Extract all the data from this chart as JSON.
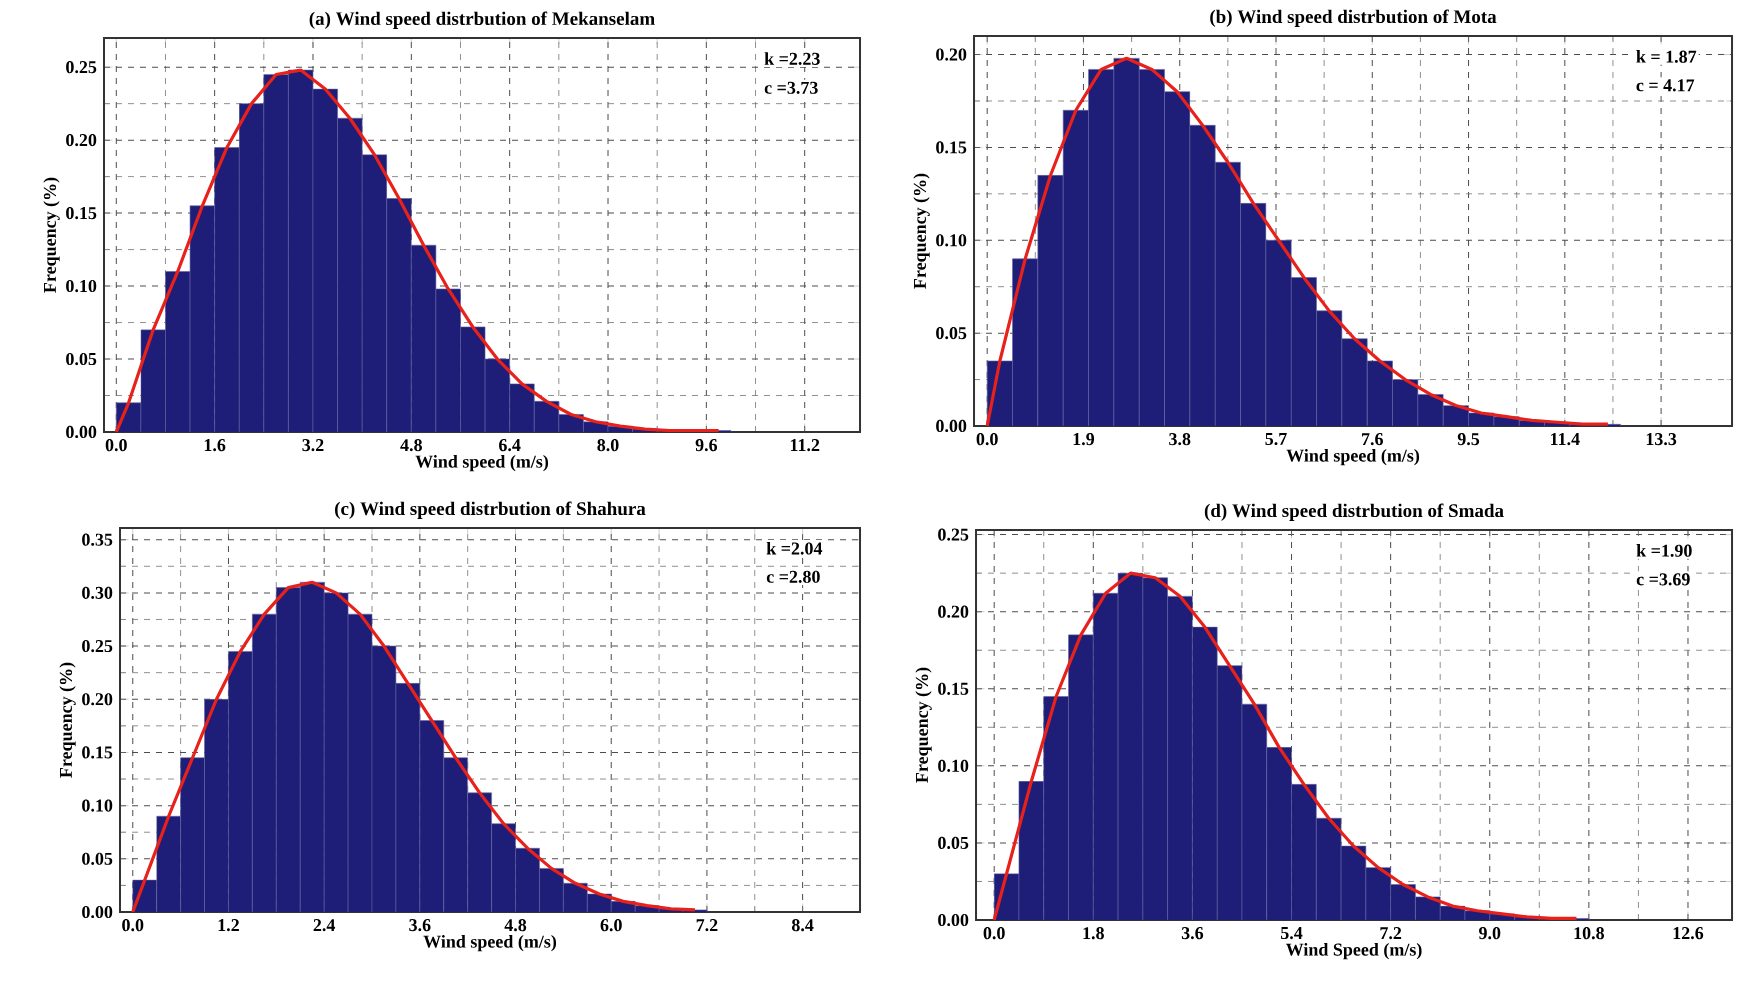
{
  "chart_data": [
    {
      "type": "histogram",
      "title": "(a) Wind speed distrbution of Mekanselam",
      "xlabel": "Wind speed (m/s)",
      "ylabel": "Frequency (%)",
      "annotations": [
        "k =2.23",
        "c =3.73"
      ],
      "grid": true,
      "xlim": [
        -0.2,
        12.1
      ],
      "ylim": [
        0,
        0.27
      ],
      "xticks": [
        {
          "value": 0,
          "label": "0.0"
        },
        {
          "value": 1.6,
          "label": "1.6"
        },
        {
          "value": 3.2,
          "label": "3.2"
        },
        {
          "value": 4.8,
          "label": "4.8"
        },
        {
          "value": 6.4,
          "label": "6.4"
        },
        {
          "value": 8,
          "label": "8.0"
        },
        {
          "value": 9.6,
          "label": "9.6"
        },
        {
          "value": 11.2,
          "label": "11.2"
        }
      ],
      "yticks": [
        {
          "value": 0,
          "label": "0.00"
        },
        {
          "value": 0.05,
          "label": "0.05"
        },
        {
          "value": 0.1,
          "label": "0.10"
        },
        {
          "value": 0.15,
          "label": "0.15"
        },
        {
          "value": 0.2,
          "label": "0.20"
        },
        {
          "value": 0.25,
          "label": "0.25"
        }
      ],
      "bins": [
        0,
        0.4,
        0.8,
        1.2,
        1.6,
        2,
        2.4,
        2.8,
        3.2,
        3.6,
        4,
        4.4,
        4.8,
        5.2,
        5.6,
        6,
        6.4,
        6.8,
        7.2,
        7.6,
        8,
        8.4,
        8.8,
        9.2,
        9.6,
        10
      ],
      "series": [
        {
          "color": "#1e1e78",
          "values": [
            0.02,
            0.07,
            0.11,
            0.155,
            0.195,
            0.225,
            0.245,
            0.248,
            0.235,
            0.215,
            0.19,
            0.16,
            0.128,
            0.098,
            0.072,
            0.05,
            0.033,
            0.021,
            0.012,
            0.007,
            0.004,
            0.002,
            0.001,
            0.001,
            0.001
          ]
        },
        {
          "type": "line",
          "color": "#e8211b",
          "x": [
            0,
            0.2,
            0.6,
            1,
            1.4,
            1.8,
            2.2,
            2.6,
            3,
            3.4,
            3.8,
            4.2,
            4.6,
            5,
            5.4,
            5.8,
            6.2,
            6.6,
            7,
            7.4,
            7.8,
            8.2,
            8.6,
            9,
            9.4,
            9.8
          ],
          "values": [
            0,
            0.02,
            0.07,
            0.11,
            0.155,
            0.195,
            0.225,
            0.245,
            0.248,
            0.235,
            0.215,
            0.19,
            0.16,
            0.128,
            0.098,
            0.072,
            0.05,
            0.033,
            0.021,
            0.012,
            0.007,
            0.004,
            0.002,
            0.001,
            0.001,
            0.001
          ]
        }
      ]
    },
    {
      "type": "histogram",
      "title": "(b) Wind speed distrbution of Mota",
      "xlabel": "Wind speed (m/s)",
      "ylabel": "Frequency (%)",
      "annotations": [
        "k  =  1.87",
        "c =   4.17"
      ],
      "grid": true,
      "xlim": [
        -0.26,
        14.7
      ],
      "ylim": [
        0,
        0.21
      ],
      "xticks": [
        {
          "value": 0,
          "label": "0.0"
        },
        {
          "value": 1.9,
          "label": "1.9"
        },
        {
          "value": 3.8,
          "label": "3.8"
        },
        {
          "value": 5.7,
          "label": "5.7"
        },
        {
          "value": 7.6,
          "label": "7.6"
        },
        {
          "value": 9.5,
          "label": "9.5"
        },
        {
          "value": 11.4,
          "label": "11.4"
        },
        {
          "value": 13.3,
          "label": "13.3"
        }
      ],
      "yticks": [
        {
          "value": 0,
          "label": "0.00"
        },
        {
          "value": 0.05,
          "label": "0.05"
        },
        {
          "value": 0.1,
          "label": "0.10"
        },
        {
          "value": 0.15,
          "label": "0.15"
        },
        {
          "value": 0.2,
          "label": "0.20"
        }
      ],
      "bins": [
        0,
        0.5,
        1,
        1.5,
        2,
        2.5,
        3,
        3.5,
        4,
        4.5,
        5,
        5.5,
        6,
        6.5,
        7,
        7.5,
        8,
        8.5,
        9,
        9.5,
        10,
        10.5,
        11,
        11.5,
        12,
        12.5
      ],
      "series": [
        {
          "color": "#1e1e78",
          "values": [
            0.035,
            0.09,
            0.135,
            0.17,
            0.192,
            0.198,
            0.192,
            0.18,
            0.162,
            0.142,
            0.12,
            0.1,
            0.08,
            0.062,
            0.047,
            0.035,
            0.025,
            0.017,
            0.011,
            0.007,
            0.005,
            0.003,
            0.002,
            0.001,
            0.001
          ]
        },
        {
          "type": "line",
          "color": "#e8211b",
          "x": [
            0,
            0.25,
            0.75,
            1.25,
            1.75,
            2.25,
            2.75,
            3.25,
            3.75,
            4.25,
            4.75,
            5.25,
            5.75,
            6.25,
            6.75,
            7.25,
            7.75,
            8.25,
            8.75,
            9.25,
            9.75,
            10.25,
            10.75,
            11.25,
            11.75,
            12.25
          ],
          "values": [
            0,
            0.035,
            0.09,
            0.135,
            0.17,
            0.192,
            0.198,
            0.192,
            0.18,
            0.162,
            0.142,
            0.12,
            0.1,
            0.08,
            0.062,
            0.047,
            0.035,
            0.025,
            0.017,
            0.011,
            0.007,
            0.005,
            0.003,
            0.002,
            0.001,
            0.001
          ]
        }
      ]
    },
    {
      "type": "histogram",
      "title": "(c) Wind speed distrbution of Shahura",
      "xlabel": "Wind speed (m/s)",
      "ylabel": "Frequency (%)",
      "annotations": [
        "k =2.04",
        "c =2.80"
      ],
      "grid": true,
      "xlim": [
        -0.16,
        9.12
      ],
      "ylim": [
        0,
        0.361
      ],
      "xticks": [
        {
          "value": 0,
          "label": "0.0"
        },
        {
          "value": 1.2,
          "label": "1.2"
        },
        {
          "value": 2.4,
          "label": "2.4"
        },
        {
          "value": 3.6,
          "label": "3.6"
        },
        {
          "value": 4.8,
          "label": "4.8"
        },
        {
          "value": 6,
          "label": "6.0"
        },
        {
          "value": 7.2,
          "label": "7.2"
        },
        {
          "value": 8.4,
          "label": "8.4"
        }
      ],
      "yticks": [
        {
          "value": 0,
          "label": "0.00"
        },
        {
          "value": 0.05,
          "label": "0.05"
        },
        {
          "value": 0.1,
          "label": "0.10"
        },
        {
          "value": 0.15,
          "label": "0.15"
        },
        {
          "value": 0.2,
          "label": "0.20"
        },
        {
          "value": 0.25,
          "label": "0.25"
        },
        {
          "value": 0.3,
          "label": "0.30"
        },
        {
          "value": 0.35,
          "label": "0.35"
        }
      ],
      "bins": [
        0,
        0.3,
        0.6,
        0.9,
        1.2,
        1.5,
        1.8,
        2.1,
        2.4,
        2.7,
        3,
        3.3,
        3.6,
        3.9,
        4.2,
        4.5,
        4.8,
        5.1,
        5.4,
        5.7,
        6,
        6.3,
        6.6,
        6.9,
        7.2
      ],
      "series": [
        {
          "color": "#1e1e78",
          "values": [
            0.03,
            0.09,
            0.145,
            0.2,
            0.245,
            0.28,
            0.305,
            0.31,
            0.3,
            0.28,
            0.25,
            0.215,
            0.18,
            0.145,
            0.112,
            0.083,
            0.06,
            0.041,
            0.027,
            0.017,
            0.01,
            0.006,
            0.003,
            0.002
          ]
        },
        {
          "type": "line",
          "color": "#e8211b",
          "x": [
            0,
            0.15,
            0.45,
            0.75,
            1.05,
            1.35,
            1.65,
            1.95,
            2.25,
            2.55,
            2.85,
            3.15,
            3.45,
            3.75,
            4.05,
            4.35,
            4.65,
            4.95,
            5.25,
            5.55,
            5.85,
            6.15,
            6.45,
            6.75,
            7.05
          ],
          "values": [
            0,
            0.03,
            0.09,
            0.145,
            0.2,
            0.245,
            0.28,
            0.305,
            0.31,
            0.3,
            0.28,
            0.25,
            0.215,
            0.18,
            0.145,
            0.112,
            0.083,
            0.06,
            0.041,
            0.027,
            0.017,
            0.01,
            0.006,
            0.003,
            0.002
          ]
        }
      ]
    },
    {
      "type": "histogram",
      "title": "(d) Wind speed distrbution of Smada",
      "xlabel": "Wind Speed (m/s)",
      "ylabel": "Frequency (%)",
      "annotations": [
        "k =1.90",
        "c =3.69"
      ],
      "grid": true,
      "xlim": [
        -0.33,
        13.4
      ],
      "ylim": [
        0,
        0.253
      ],
      "xticks": [
        {
          "value": 0,
          "label": "0.0"
        },
        {
          "value": 1.8,
          "label": "1.8"
        },
        {
          "value": 3.6,
          "label": "3.6"
        },
        {
          "value": 5.4,
          "label": "5.4"
        },
        {
          "value": 7.2,
          "label": "7.2"
        },
        {
          "value": 9,
          "label": "9.0"
        },
        {
          "value": 10.8,
          "label": "10.8"
        },
        {
          "value": 12.6,
          "label": "12.6"
        }
      ],
      "yticks": [
        {
          "value": 0,
          "label": "0.00"
        },
        {
          "value": 0.05,
          "label": "0.05"
        },
        {
          "value": 0.1,
          "label": "0.10"
        },
        {
          "value": 0.15,
          "label": "0.15"
        },
        {
          "value": 0.2,
          "label": "0.20"
        },
        {
          "value": 0.25,
          "label": "0.25"
        }
      ],
      "bins": [
        0,
        0.45,
        0.9,
        1.35,
        1.8,
        2.25,
        2.7,
        3.15,
        3.6,
        4.05,
        4.5,
        4.95,
        5.4,
        5.85,
        6.3,
        6.75,
        7.2,
        7.65,
        8.1,
        8.55,
        9,
        9.45,
        9.9,
        10.35,
        10.8
      ],
      "series": [
        {
          "color": "#1e1e78",
          "values": [
            0.03,
            0.09,
            0.145,
            0.185,
            0.212,
            0.225,
            0.222,
            0.21,
            0.19,
            0.165,
            0.14,
            0.112,
            0.088,
            0.066,
            0.048,
            0.034,
            0.023,
            0.015,
            0.009,
            0.006,
            0.004,
            0.002,
            0.001,
            0.001
          ]
        },
        {
          "type": "line",
          "color": "#e8211b",
          "x": [
            0,
            0.225,
            0.675,
            1.125,
            1.575,
            2.025,
            2.475,
            2.925,
            3.375,
            3.825,
            4.275,
            4.725,
            5.175,
            5.625,
            6.075,
            6.525,
            6.975,
            7.425,
            7.875,
            8.325,
            8.775,
            9.225,
            9.675,
            10.125,
            10.575
          ],
          "values": [
            0,
            0.03,
            0.09,
            0.145,
            0.185,
            0.212,
            0.225,
            0.222,
            0.21,
            0.19,
            0.165,
            0.14,
            0.112,
            0.088,
            0.066,
            0.048,
            0.034,
            0.023,
            0.015,
            0.009,
            0.006,
            0.004,
            0.002,
            0.001,
            0.001
          ]
        }
      ]
    }
  ]
}
